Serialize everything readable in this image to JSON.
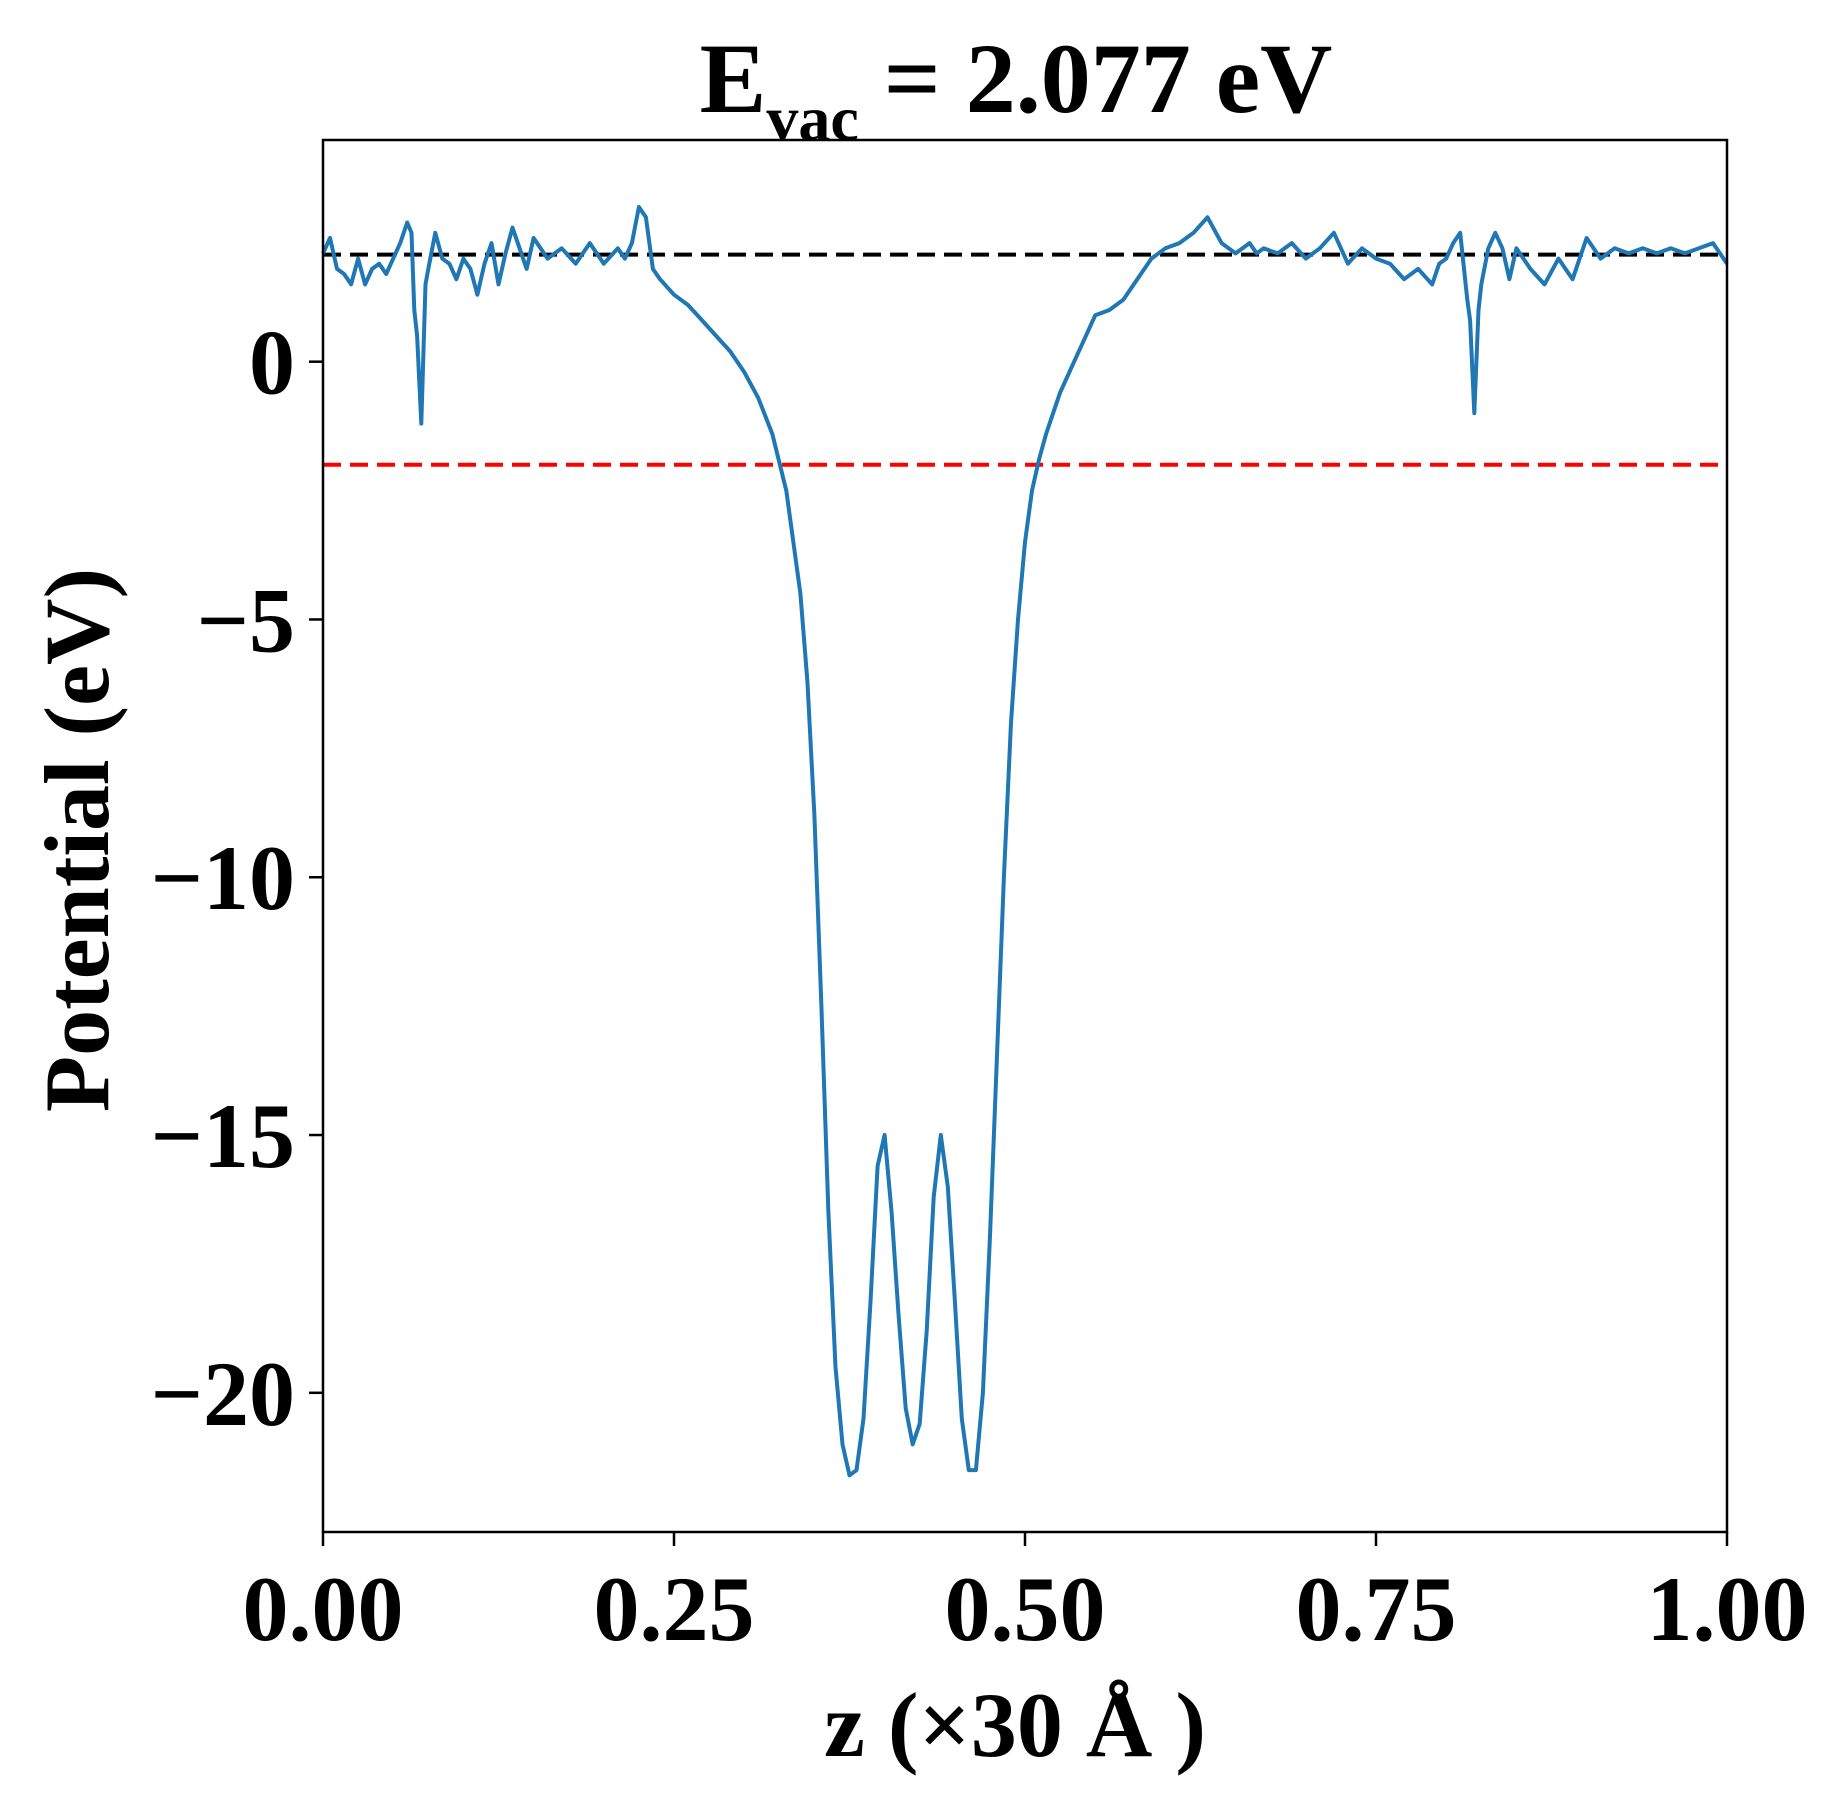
{
  "chart_data": {
    "type": "line",
    "title": {
      "main": "E",
      "subscript": "vac",
      "rest": " = 2.077 eV"
    },
    "xlabel": "z (×30 Å )",
    "ylabel": "Potential (eV)",
    "xlim": [
      0.0,
      1.0
    ],
    "ylim": [
      -22.7,
      4.3
    ],
    "xticks": [
      {
        "value": 0.0,
        "label": "0.00"
      },
      {
        "value": 0.25,
        "label": "0.25"
      },
      {
        "value": 0.5,
        "label": "0.50"
      },
      {
        "value": 0.75,
        "label": "0.75"
      },
      {
        "value": 1.0,
        "label": "1.00"
      }
    ],
    "yticks": [
      {
        "value": 0,
        "label": "0"
      },
      {
        "value": -5,
        "label": "−5"
      },
      {
        "value": -10,
        "label": "−10"
      },
      {
        "value": -15,
        "label": "−15"
      },
      {
        "value": -20,
        "label": "−20"
      }
    ],
    "grid": false,
    "series": [
      {
        "color": "#1f77b4",
        "x": [
          0.0,
          0.005,
          0.01,
          0.015,
          0.02,
          0.025,
          0.03,
          0.035,
          0.04,
          0.045,
          0.05,
          0.055,
          0.06,
          0.063,
          0.065,
          0.067,
          0.07,
          0.073,
          0.075,
          0.08,
          0.085,
          0.09,
          0.095,
          0.1,
          0.105,
          0.11,
          0.115,
          0.12,
          0.125,
          0.13,
          0.135,
          0.14,
          0.145,
          0.15,
          0.16,
          0.17,
          0.18,
          0.19,
          0.2,
          0.21,
          0.215,
          0.22,
          0.225,
          0.23,
          0.235,
          0.24,
          0.25,
          0.26,
          0.27,
          0.28,
          0.29,
          0.3,
          0.31,
          0.32,
          0.33,
          0.34,
          0.345,
          0.35,
          0.355,
          0.36,
          0.365,
          0.37,
          0.375,
          0.38,
          0.385,
          0.39,
          0.395,
          0.4,
          0.405,
          0.41,
          0.415,
          0.42,
          0.425,
          0.43,
          0.435,
          0.44,
          0.445,
          0.45,
          0.455,
          0.46,
          0.465,
          0.47,
          0.475,
          0.48,
          0.485,
          0.49,
          0.495,
          0.5,
          0.505,
          0.51,
          0.515,
          0.52,
          0.525,
          0.53,
          0.535,
          0.54,
          0.545,
          0.55,
          0.56,
          0.57,
          0.58,
          0.59,
          0.6,
          0.61,
          0.62,
          0.63,
          0.64,
          0.65,
          0.655,
          0.66,
          0.665,
          0.67,
          0.68,
          0.69,
          0.7,
          0.71,
          0.72,
          0.73,
          0.74,
          0.75,
          0.76,
          0.77,
          0.78,
          0.79,
          0.795,
          0.8,
          0.805,
          0.81,
          0.815,
          0.817,
          0.82,
          0.823,
          0.825,
          0.83,
          0.835,
          0.84,
          0.845,
          0.85,
          0.86,
          0.87,
          0.88,
          0.89,
          0.9,
          0.91,
          0.92,
          0.93,
          0.94,
          0.95,
          0.96,
          0.97,
          0.98,
          0.99,
          1.0
        ],
        "y": [
          2.1,
          2.4,
          1.8,
          1.7,
          1.5,
          2.0,
          1.5,
          1.8,
          1.9,
          1.7,
          2.0,
          2.3,
          2.7,
          2.5,
          1.0,
          0.5,
          -1.2,
          1.5,
          1.8,
          2.5,
          2.0,
          1.9,
          1.6,
          2.0,
          1.8,
          1.3,
          1.9,
          2.3,
          1.5,
          2.1,
          2.6,
          2.2,
          1.8,
          2.4,
          2.0,
          2.2,
          1.9,
          2.3,
          1.9,
          2.2,
          2.0,
          2.3,
          3.0,
          2.8,
          1.8,
          1.6,
          1.3,
          1.1,
          0.8,
          0.5,
          0.2,
          -0.2,
          -0.7,
          -1.4,
          -2.5,
          -4.5,
          -6.2,
          -8.8,
          -12.5,
          -16.5,
          -19.5,
          -21.0,
          -21.6,
          -21.5,
          -20.5,
          -18.2,
          -15.6,
          -15.0,
          -16.5,
          -18.5,
          -20.3,
          -21.0,
          -20.6,
          -18.8,
          -16.2,
          -15.0,
          -16.0,
          -18.2,
          -20.5,
          -21.5,
          -21.5,
          -20.0,
          -17.0,
          -13.5,
          -10.0,
          -7.0,
          -5.0,
          -3.5,
          -2.5,
          -1.9,
          -1.4,
          -1.0,
          -0.6,
          -0.3,
          0.0,
          0.3,
          0.6,
          0.9,
          1.0,
          1.2,
          1.6,
          2.0,
          2.2,
          2.3,
          2.5,
          2.8,
          2.3,
          2.1,
          2.2,
          2.3,
          2.1,
          2.2,
          2.1,
          2.3,
          2.0,
          2.2,
          2.5,
          1.9,
          2.2,
          2.0,
          1.9,
          1.6,
          1.8,
          1.5,
          1.9,
          2.0,
          2.3,
          2.5,
          1.2,
          0.8,
          -1.0,
          1.0,
          1.5,
          2.2,
          2.5,
          2.2,
          1.6,
          2.2,
          1.8,
          1.5,
          2.0,
          1.6,
          2.4,
          2.0,
          2.2,
          2.1,
          2.2,
          2.1,
          2.2,
          2.1,
          2.2,
          2.3,
          1.9
        ]
      }
    ],
    "reference_lines": [
      {
        "y": 2.077,
        "color": "#000000",
        "style": "dashed"
      },
      {
        "y": -2.0,
        "color": "#ff0000",
        "style": "dashed"
      }
    ]
  }
}
